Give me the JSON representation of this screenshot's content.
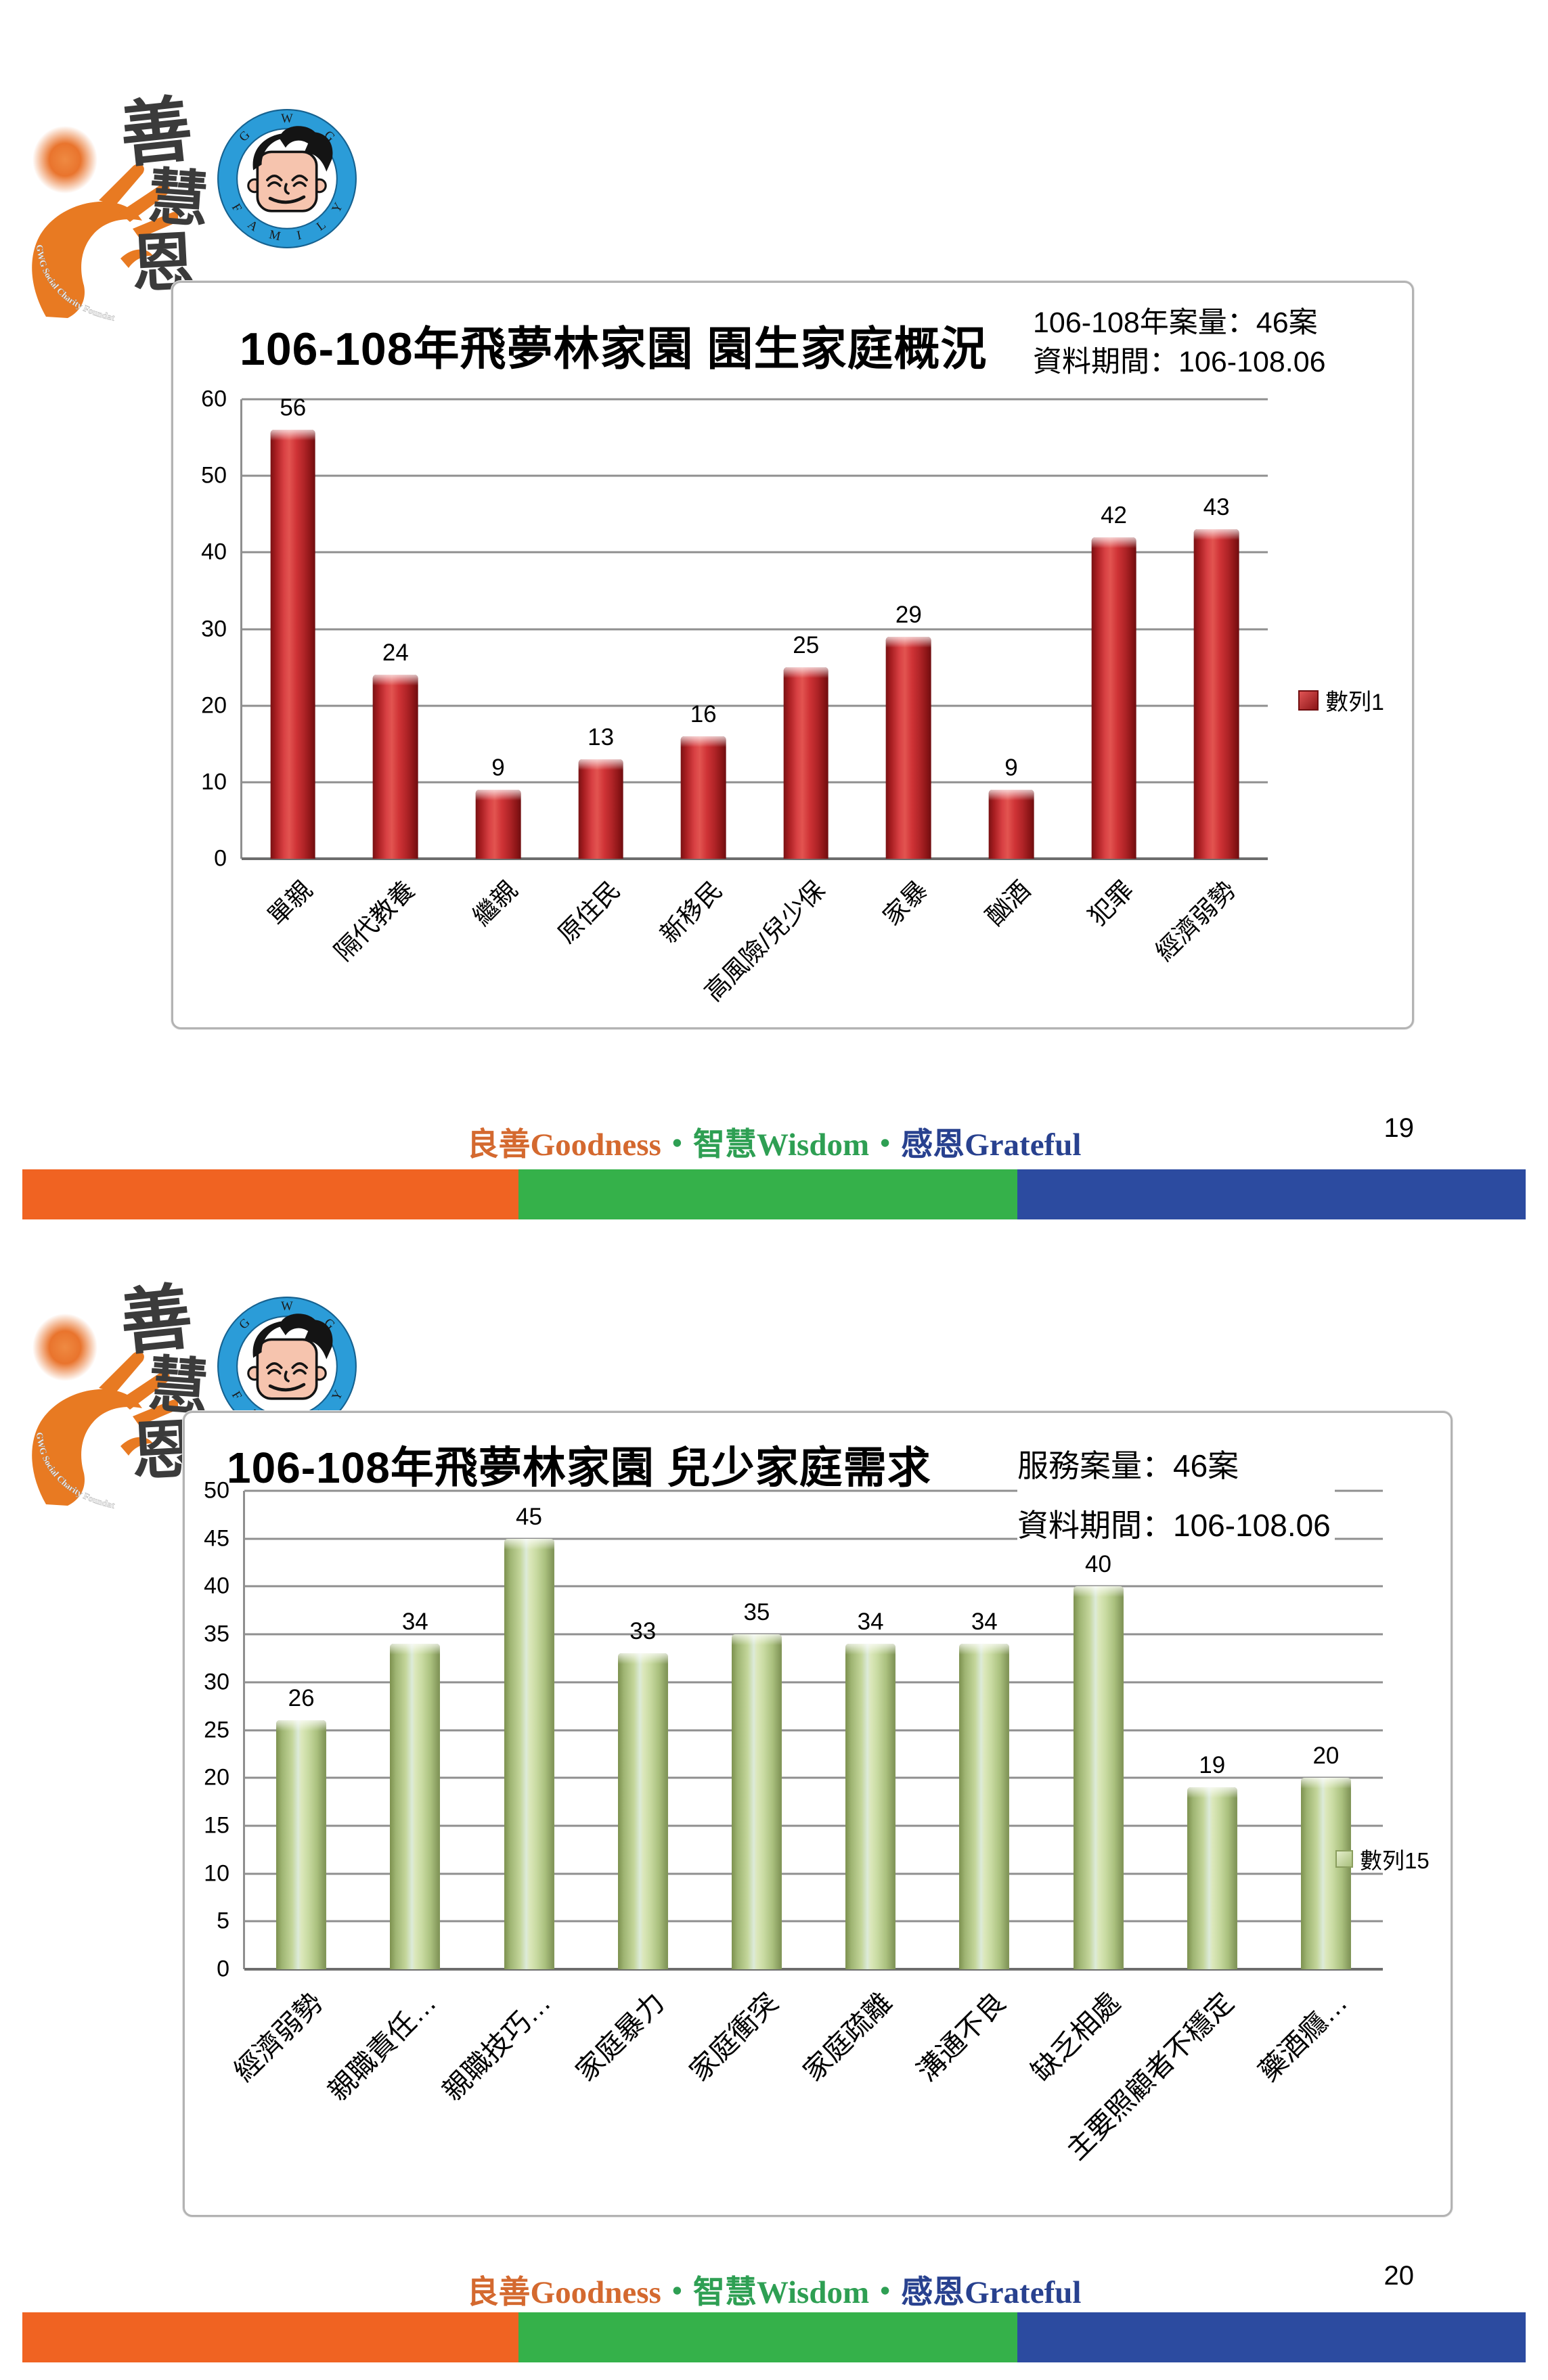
{
  "logo": {
    "foundation_arc_text": "GWG Social Charity Foundation",
    "calligraphy_chars": [
      "善",
      "慧",
      "恩"
    ],
    "badge_top_letters": [
      "G",
      "W",
      "G"
    ],
    "badge_bottom_letters": [
      "F",
      "A",
      "M",
      "I",
      "L",
      "Y"
    ]
  },
  "footer": {
    "part1": "良善Goodness",
    "sep1": "・",
    "part2": "智慧Wisdom",
    "sep2": "・",
    "part3": "感恩Grateful"
  },
  "slides": [
    {
      "page_number": "19"
    },
    {
      "page_number": "20"
    }
  ],
  "colors": {
    "bar_red": "#c1272d",
    "bar_green": "#c9daa2",
    "footer_bar_orange": "#f06322",
    "footer_bar_green": "#35b14a",
    "footer_bar_blue": "#2c4ba0",
    "footer_text_orange": "#d4692f",
    "footer_text_green": "#2e9f53",
    "footer_text_navy": "#28418f",
    "badge_ring_blue": "#2b9cd8",
    "logo_orange": "#e87a22",
    "gridline_gray": "#8f8f8f"
  },
  "chart_data": [
    {
      "type": "bar",
      "title": "106-108年飛夢林家園 園生家庭概況",
      "note_lines": [
        "106-108年案量：46案",
        "資料期間：106-108.06"
      ],
      "categories": [
        "單親",
        "隔代教養",
        "繼親",
        "原住民",
        "新移民",
        "高風險/兒少保",
        "家暴",
        "酗酒",
        "犯罪",
        "經濟弱勢"
      ],
      "values": [
        56,
        24,
        9,
        13,
        16,
        25,
        29,
        9,
        42,
        43
      ],
      "series_label": "數列1",
      "ylim": [
        0,
        60
      ],
      "ystep": 10,
      "grid": true,
      "legend_position": "right",
      "bar_style": "red"
    },
    {
      "type": "bar",
      "title": "106-108年飛夢林家園 兒少家庭需求",
      "note_lines": [
        "服務案量：46案",
        "資料期間：106-108.06"
      ],
      "categories": [
        "經濟弱勢",
        "親職責任…",
        "親職技巧…",
        "家庭暴力",
        "家庭衝突",
        "家庭疏離",
        "溝通不良",
        "缺乏相處",
        "主要照顧者不穩定",
        "藥酒癮…"
      ],
      "values": [
        26,
        34,
        45,
        33,
        35,
        34,
        34,
        40,
        19,
        20
      ],
      "series_label": "數列15",
      "ylim": [
        0,
        50
      ],
      "ystep": 5,
      "grid": true,
      "legend_position": "right",
      "bar_style": "green"
    }
  ]
}
